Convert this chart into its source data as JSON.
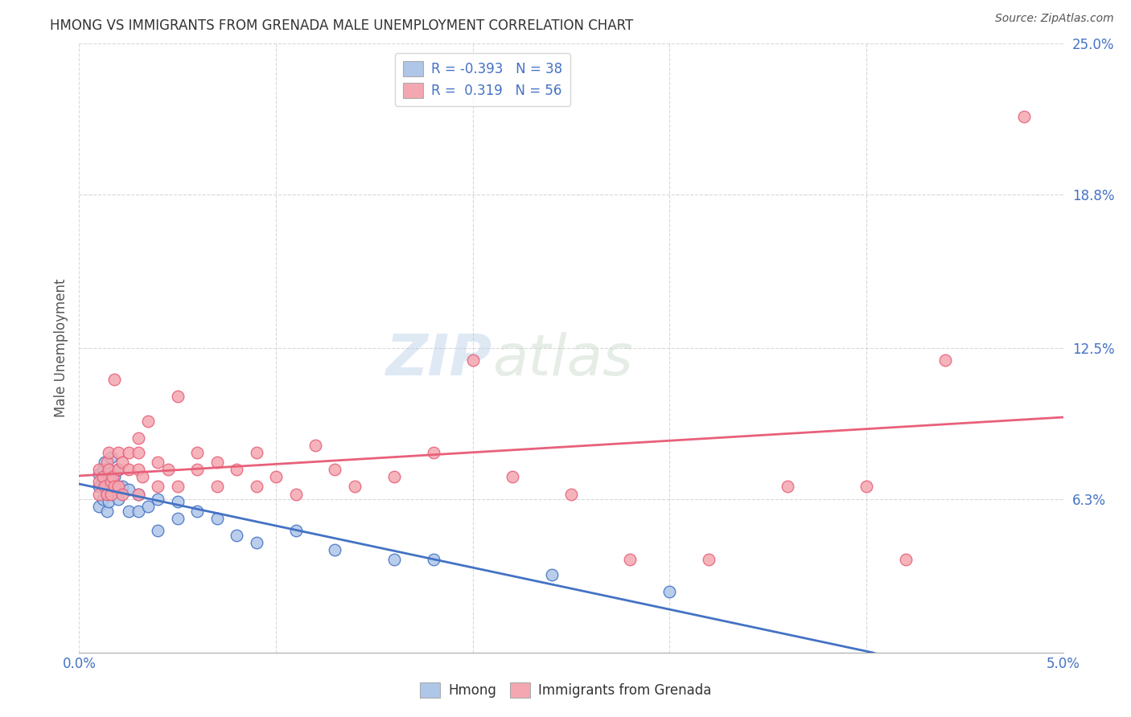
{
  "title": "HMONG VS IMMIGRANTS FROM GRENADA MALE UNEMPLOYMENT CORRELATION CHART",
  "source": "Source: ZipAtlas.com",
  "ylabel": "Male Unemployment",
  "xlim": [
    0.0,
    0.05
  ],
  "ylim": [
    0.0,
    0.25
  ],
  "ytick_vals": [
    0.0,
    0.063,
    0.125,
    0.188,
    0.25
  ],
  "ytick_labels": [
    "",
    "6.3%",
    "12.5%",
    "18.8%",
    "25.0%"
  ],
  "xtick_vals": [
    0.0,
    0.01,
    0.02,
    0.03,
    0.04,
    0.05
  ],
  "xtick_labels": [
    "0.0%",
    "",
    "",
    "",
    "",
    "5.0%"
  ],
  "background_color": "#ffffff",
  "grid_color": "#d8d8d8",
  "hmong_color": "#aec6e8",
  "grenada_color": "#f4a7b0",
  "hmong_line_color": "#4472c4",
  "grenada_line_color": "#e8607a",
  "hmong_R": -0.393,
  "hmong_N": 38,
  "grenada_R": 0.319,
  "grenada_N": 56,
  "watermark_zip": "ZIP",
  "watermark_atlas": "atlas",
  "legend_label_hmong": "Hmong",
  "legend_label_grenada": "Immigrants from Grenada",
  "hmong_x": [
    0.001,
    0.001,
    0.001,
    0.0012,
    0.0012,
    0.0012,
    0.0013,
    0.0013,
    0.0014,
    0.0014,
    0.0015,
    0.0015,
    0.0016,
    0.0016,
    0.0017,
    0.0018,
    0.002,
    0.002,
    0.0022,
    0.0025,
    0.0025,
    0.003,
    0.003,
    0.0035,
    0.004,
    0.004,
    0.005,
    0.005,
    0.006,
    0.007,
    0.008,
    0.009,
    0.011,
    0.013,
    0.016,
    0.018,
    0.024,
    0.03
  ],
  "hmong_y": [
    0.073,
    0.068,
    0.06,
    0.075,
    0.07,
    0.063,
    0.078,
    0.068,
    0.065,
    0.058,
    0.075,
    0.062,
    0.08,
    0.068,
    0.07,
    0.072,
    0.075,
    0.063,
    0.068,
    0.067,
    0.058,
    0.065,
    0.058,
    0.06,
    0.063,
    0.05,
    0.062,
    0.055,
    0.058,
    0.055,
    0.048,
    0.045,
    0.05,
    0.042,
    0.038,
    0.038,
    0.032,
    0.025
  ],
  "grenada_x": [
    0.001,
    0.001,
    0.001,
    0.0012,
    0.0013,
    0.0014,
    0.0014,
    0.0015,
    0.0015,
    0.0016,
    0.0016,
    0.0017,
    0.0018,
    0.0018,
    0.002,
    0.002,
    0.002,
    0.0022,
    0.0022,
    0.0025,
    0.0025,
    0.003,
    0.003,
    0.003,
    0.003,
    0.0032,
    0.0035,
    0.004,
    0.004,
    0.0045,
    0.005,
    0.005,
    0.006,
    0.006,
    0.007,
    0.007,
    0.008,
    0.009,
    0.009,
    0.01,
    0.011,
    0.012,
    0.013,
    0.014,
    0.016,
    0.018,
    0.02,
    0.022,
    0.025,
    0.028,
    0.032,
    0.036,
    0.04,
    0.042,
    0.044,
    0.048
  ],
  "grenada_y": [
    0.075,
    0.07,
    0.065,
    0.072,
    0.068,
    0.078,
    0.065,
    0.082,
    0.075,
    0.07,
    0.065,
    0.072,
    0.112,
    0.068,
    0.082,
    0.075,
    0.068,
    0.078,
    0.065,
    0.082,
    0.075,
    0.088,
    0.082,
    0.075,
    0.065,
    0.072,
    0.095,
    0.078,
    0.068,
    0.075,
    0.105,
    0.068,
    0.082,
    0.075,
    0.078,
    0.068,
    0.075,
    0.082,
    0.068,
    0.072,
    0.065,
    0.085,
    0.075,
    0.068,
    0.072,
    0.082,
    0.12,
    0.072,
    0.065,
    0.038,
    0.038,
    0.068,
    0.068,
    0.038,
    0.12,
    0.22
  ]
}
